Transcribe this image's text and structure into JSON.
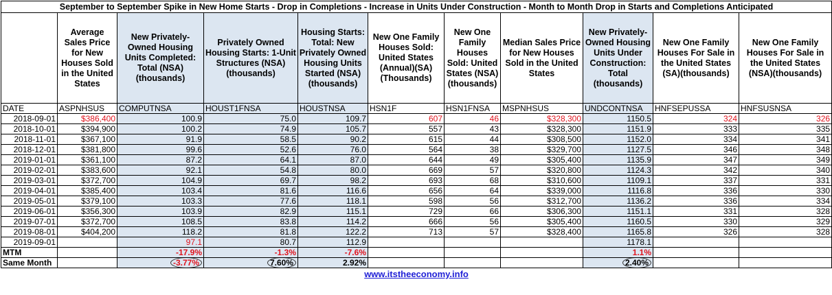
{
  "title": "September to September Spike in New Home Starts - Drop in Completions - Increase in Units Under Construction - Month to Month Drop in Starts and Completions Anticipated",
  "columns": [
    {
      "header": "",
      "code": "DATE"
    },
    {
      "header": "Average Sales Price for New Houses Sold in the United States",
      "code": "ASPNHSUS"
    },
    {
      "header": "New Privately-Owned Housing Units Completed: Total (NSA)(thousands)",
      "code": "COMPUTNSA"
    },
    {
      "header": "Privately Owned Housing Starts: 1-Unit Structures (NSA) (thousands)",
      "code": "HOUST1FNSA"
    },
    {
      "header": "Housing Starts: Total: New Privately Owned Housing Units Started (NSA) (thousands)",
      "code": "HOUSTNSA"
    },
    {
      "header": "New One Family Houses Sold: United States (Annual)(SA) (Thousands)",
      "code": "HSN1F"
    },
    {
      "header": "New One Family Houses Sold: United States (NSA) (thousands)",
      "code": "HSN1FNSA"
    },
    {
      "header": "Median Sales Price for New Houses Sold in the United States",
      "code": "MSPNHSUS"
    },
    {
      "header": "New Privately-Owned Housing Units Under Construction: Total (thousands)",
      "code": "UNDCONTNSA"
    },
    {
      "header": "New One Family Houses For Sale in the United States (SA)(thousands)",
      "code": "HNFSEPUSSA"
    },
    {
      "header": "New One Family Houses For Sale in the United States (NSA)(thousands)",
      "code": "HNFSUSNSA"
    }
  ],
  "rows": [
    [
      "2018-09-01",
      "$386,400",
      "100.9",
      "75.0",
      "109.7",
      "607",
      "46",
      "$328,300",
      "1150.5",
      "324",
      "326"
    ],
    [
      "2018-10-01",
      "$394,900",
      "100.2",
      "74.9",
      "105.7",
      "557",
      "43",
      "$328,300",
      "1151.9",
      "333",
      "335"
    ],
    [
      "2018-11-01",
      "$367,100",
      "91.9",
      "58.5",
      "90.2",
      "615",
      "44",
      "$308,500",
      "1152.0",
      "334",
      "341"
    ],
    [
      "2018-12-01",
      "$381,800",
      "99.6",
      "52.6",
      "76.0",
      "564",
      "38",
      "$329,700",
      "1127.5",
      "346",
      "348"
    ],
    [
      "2019-01-01",
      "$361,100",
      "87.2",
      "64.1",
      "87.0",
      "644",
      "49",
      "$305,400",
      "1135.9",
      "347",
      "349"
    ],
    [
      "2019-02-01",
      "$383,600",
      "92.1",
      "54.8",
      "80.0",
      "669",
      "57",
      "$320,800",
      "1124.3",
      "342",
      "340"
    ],
    [
      "2019-03-01",
      "$372,700",
      "104.9",
      "69.7",
      "98.2",
      "693",
      "68",
      "$310,600",
      "1109.1",
      "337",
      "331"
    ],
    [
      "2019-04-01",
      "$385,400",
      "103.4",
      "81.6",
      "116.6",
      "656",
      "64",
      "$339,000",
      "1116.8",
      "336",
      "330"
    ],
    [
      "2019-05-01",
      "$379,100",
      "103.3",
      "77.6",
      "118.1",
      "598",
      "56",
      "$312,700",
      "1136.2",
      "336",
      "334"
    ],
    [
      "2019-06-01",
      "$356,300",
      "103.9",
      "82.9",
      "115.1",
      "729",
      "66",
      "$306,300",
      "1151.1",
      "331",
      "328"
    ],
    [
      "2019-07-01",
      "$372,700",
      "108.5",
      "83.8",
      "114.2",
      "666",
      "56",
      "$305,400",
      "1160.5",
      "330",
      "329"
    ],
    [
      "2019-08-01",
      "$404,200",
      "118.2",
      "81.8",
      "122.2",
      "713",
      "57",
      "$328,400",
      "1165.8",
      "326",
      "328"
    ],
    [
      "2019-09-01",
      "",
      "97.1",
      "80.7",
      "112.9",
      "",
      "",
      "",
      "1178.1",
      "",
      ""
    ]
  ],
  "mtm": {
    "label": "MTM",
    "computnsa": "-17.9%",
    "houst1fnsa": "-1.3%",
    "houstnsa": "-7.6%",
    "undcontnsa": "1.1%"
  },
  "same_month": {
    "label": "Same Month",
    "computnsa": "-3.77%",
    "houst1fnsa": "7.60%",
    "houstnsa": "2.92%",
    "undcontnsa": "2.40%"
  },
  "footer_link": "www.itstheeconomy.info",
  "colors": {
    "highlight": "#dce6f1",
    "red": "#e0141e",
    "link": "#1f1fd6"
  }
}
